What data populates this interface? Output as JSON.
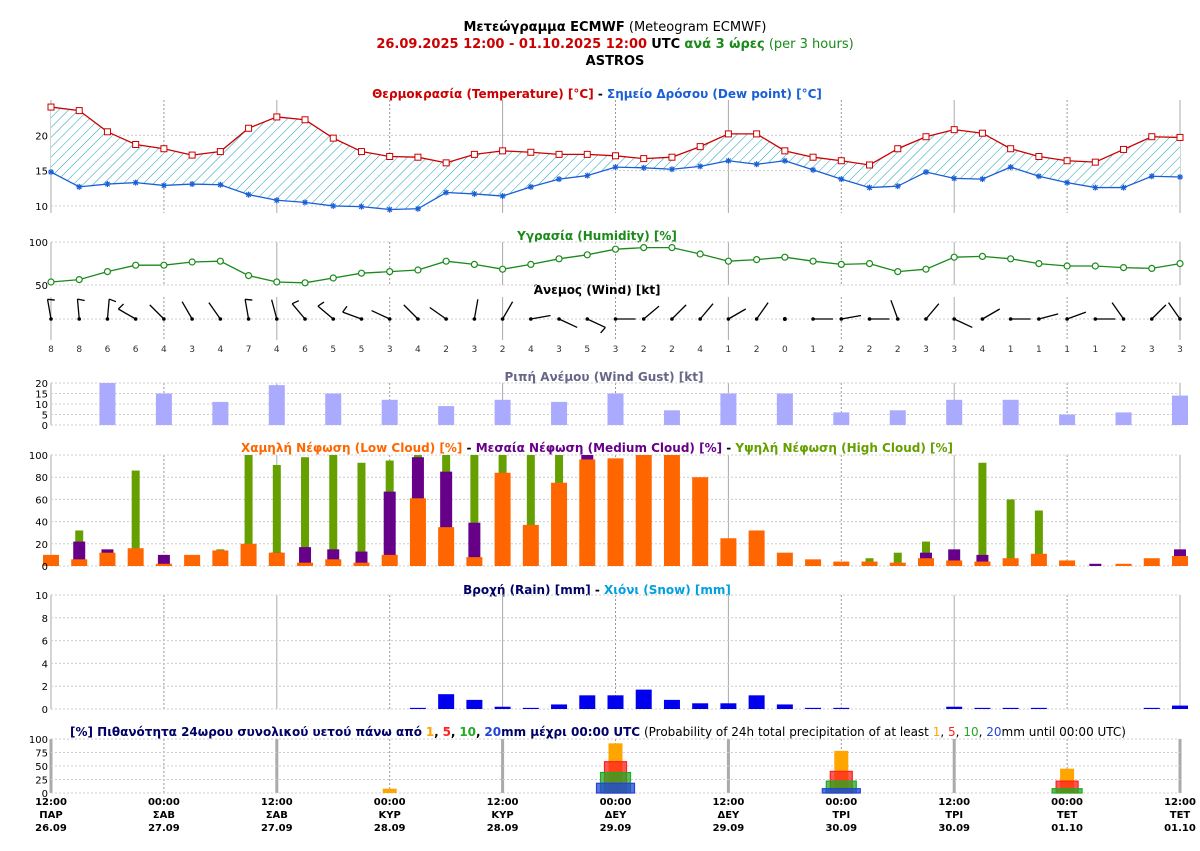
{
  "header": {
    "title_gr": "Μετεώγραμμα ECMWF",
    "title_en": "(Meteogram ECMWF)",
    "period": "26.09.2025 12:00 - 01.10.2025 12:00",
    "utc": "UTC",
    "step_gr": "ανά 3 ώρες",
    "step_en": "(per 3 hours)",
    "location": "ASTROS"
  },
  "titles": {
    "temp_a": "Θερμοκρασία (Temperature) [°C]",
    "dash": " - ",
    "temp_b": "Σημείο Δρόσου (Dew point) [°C]",
    "humidity": "Υγρασία (Humidity) [%]",
    "wind": "Άνεμος (Wind) [kt]",
    "gust": "Ριπή Ανέμου (Wind Gust) [kt]",
    "cloud_low": "Χαμηλή Νέφωση (Low Cloud) [%]",
    "cloud_med": "Μεσαία Νέφωση (Medium Cloud) [%]",
    "cloud_high": "Υψηλή Νέφωση (High Cloud) [%]",
    "rain": "Βροχή (Rain) [mm]",
    "snow": "Χιόνι (Snow) [mm]",
    "prob_a": "[%] Πιθανότητα 24ωρου συνολικού υετού πάνω από",
    "prob_b": "mm μέχρι 00:00 UTC",
    "prob_c": "(Probability of 24h total precipitation of at least",
    "prob_d": "mm until 00:00 UTC)",
    "thr1": "1",
    "thr5": "5",
    "thr10": "10",
    "thr20": "20",
    "comma": ","
  },
  "colors": {
    "temperature": "#cc0000",
    "dewpoint": "#1a5fd6",
    "humidity": "#1a8a1a",
    "gust": "#aaaaff",
    "low_cloud": "#ff6600",
    "medium_cloud": "#660088",
    "high_cloud": "#66a000",
    "rain": "#0000ee",
    "snow": "#00a0e0",
    "p1": "#ffa500",
    "p5": "#ff2020",
    "p10": "#22aa22",
    "p20": "#2244dd",
    "title_dark": "#000066"
  },
  "time_axis": {
    "hours": [
      "12:00",
      "00:00",
      "12:00",
      "00:00",
      "12:00",
      "00:00",
      "12:00",
      "00:00",
      "12:00",
      "00:00",
      "12:00"
    ],
    "days": [
      "ΠΑΡ",
      "ΣΑΒ",
      "ΣΑΒ",
      "ΚΥΡ",
      "ΚΥΡ",
      "ΔΕΥ",
      "ΔΕΥ",
      "ΤΡΙ",
      "ΤΡΙ",
      "ΤΕΤ",
      "ΤΕΤ"
    ],
    "dates": [
      "26.09",
      "27.09",
      "27.09",
      "28.09",
      "28.09",
      "29.09",
      "29.09",
      "30.09",
      "30.09",
      "01.10",
      "01.10"
    ]
  },
  "chart_data": [
    {
      "type": "line",
      "x_step_hours": 3,
      "series": [
        {
          "name": "Θερμοκρασία (Temperature) [°C]",
          "values": [
            24.0,
            23.5,
            20.5,
            18.7,
            18.1,
            17.2,
            17.7,
            21.0,
            22.6,
            22.2,
            19.6,
            17.7,
            17.0,
            16.9,
            16.1,
            17.3,
            17.8,
            17.6,
            17.3,
            17.3,
            17.1,
            16.7,
            16.9,
            18.4,
            20.2,
            20.2,
            17.8,
            16.9,
            16.4,
            15.8,
            18.1,
            19.8,
            20.8,
            20.3,
            18.1,
            17.0,
            16.4,
            16.2,
            18.0,
            19.8,
            19.7
          ]
        },
        {
          "name": "Σημείο Δρόσου (Dew point) [°C]",
          "values": [
            14.8,
            12.7,
            13.1,
            13.3,
            12.9,
            13.1,
            13.0,
            11.6,
            10.8,
            10.5,
            10.0,
            9.9,
            9.5,
            9.6,
            11.9,
            11.7,
            11.4,
            12.7,
            13.8,
            14.3,
            15.5,
            15.4,
            15.2,
            15.6,
            16.4,
            15.9,
            16.4,
            15.1,
            13.8,
            12.6,
            12.8,
            14.8,
            13.9,
            13.8,
            15.5,
            14.2,
            13.3,
            12.6,
            12.6,
            14.2,
            14.1
          ]
        }
      ],
      "yticks": [
        10,
        15,
        20
      ],
      "ylim": [
        9,
        25
      ]
    },
    {
      "type": "line",
      "series": [
        {
          "name": "Υγρασία (Humidity) [%]",
          "values": [
            50,
            53,
            63,
            71,
            71,
            75,
            76,
            58,
            50,
            49,
            55,
            61,
            63,
            65,
            76,
            72,
            66,
            72,
            79,
            84,
            91,
            93,
            93,
            85,
            76,
            78,
            81,
            76,
            72,
            73,
            63,
            66,
            81,
            82,
            79,
            73,
            70,
            70,
            68,
            67,
            73
          ]
        }
      ],
      "yticks": [
        50,
        100
      ],
      "ylim": [
        50,
        100
      ]
    },
    {
      "type": "table",
      "name": "Άνεμος (Wind) [kt]",
      "speed_kt": [
        8,
        8,
        6,
        6,
        4,
        3,
        4,
        7,
        4,
        6,
        5,
        5,
        3,
        4,
        2,
        3,
        2,
        4,
        3,
        5,
        3,
        2,
        2,
        4,
        1,
        2,
        0,
        1,
        2,
        2,
        2,
        3,
        3,
        4,
        1,
        1,
        1,
        1,
        2,
        3,
        3
      ],
      "direction_from_deg": [
        350,
        355,
        5,
        300,
        315,
        330,
        325,
        350,
        345,
        320,
        310,
        290,
        295,
        315,
        305,
        10,
        30,
        80,
        115,
        115,
        90,
        50,
        45,
        40,
        60,
        35,
        0,
        90,
        80,
        90,
        340,
        40,
        115,
        60,
        90,
        75,
        70,
        90,
        325,
        45,
        325
      ]
    },
    {
      "type": "bar",
      "name": "Ριπή Ανέμου (Wind Gust) [kt]",
      "values": [
        null,
        null,
        20,
        null,
        15,
        null,
        11,
        null,
        19,
        null,
        15,
        null,
        12,
        null,
        9,
        null,
        12,
        null,
        11,
        null,
        15,
        null,
        7,
        null,
        15,
        null,
        15,
        null,
        6,
        null,
        7,
        null,
        12,
        null,
        12,
        null,
        5,
        null,
        6,
        null,
        14
      ],
      "yticks": [
        0,
        5,
        10,
        15,
        20
      ],
      "ylim": [
        0,
        20
      ]
    },
    {
      "type": "bar",
      "x_step_hours": 3,
      "series": [
        {
          "name": "Υψηλή Νέφωση (High Cloud) [%]",
          "values": [
            5,
            32,
            12,
            86,
            10,
            5,
            15,
            100,
            91,
            98,
            100,
            93,
            95,
            100,
            100,
            100,
            100,
            100,
            100,
            40,
            30,
            20,
            10,
            5,
            5,
            0,
            0,
            0,
            0,
            7,
            12,
            22,
            5,
            93,
            60,
            50,
            0,
            0,
            0,
            0,
            10
          ]
        },
        {
          "name": "Μεσαία Νέφωση (Medium Cloud) [%]",
          "values": [
            3,
            22,
            15,
            5,
            10,
            3,
            13,
            8,
            12,
            17,
            15,
            13,
            67,
            98,
            85,
            39,
            0,
            0,
            0,
            100,
            95,
            50,
            20,
            0,
            0,
            0,
            0,
            0,
            0,
            0,
            0,
            12,
            15,
            10,
            5,
            0,
            3,
            2,
            0,
            0,
            15
          ]
        },
        {
          "name": "Χαμηλή Νέφωση (Low Cloud) [%]",
          "values": [
            10,
            6,
            12,
            16,
            2,
            10,
            14,
            20,
            12,
            3,
            6,
            3,
            10,
            61,
            35,
            8,
            84,
            37,
            75,
            96,
            97,
            100,
            100,
            80,
            25,
            32,
            12,
            6,
            4,
            4,
            3,
            7,
            5,
            4,
            7,
            11,
            5,
            0,
            2,
            7,
            9
          ]
        }
      ],
      "yticks": [
        0,
        20,
        40,
        60,
        80,
        100
      ],
      "ylim": [
        0,
        100
      ]
    },
    {
      "type": "bar",
      "series": [
        {
          "name": "Βροχή (Rain) [mm]",
          "values": [
            0,
            0,
            0,
            0,
            0,
            0,
            0,
            0,
            0,
            0,
            0,
            0,
            0,
            0.1,
            1.3,
            0.8,
            0.2,
            0.1,
            0.4,
            1.2,
            1.2,
            1.7,
            0.8,
            0.5,
            0.5,
            1.2,
            0.4,
            0.1,
            0.1,
            0,
            0,
            0,
            0.2,
            0.1,
            0.1,
            0.1,
            0,
            0,
            0,
            0.1,
            0.3
          ]
        },
        {
          "name": "Χιόνι (Snow) [mm]",
          "values": [
            0,
            0,
            0,
            0,
            0,
            0,
            0,
            0,
            0,
            0,
            0,
            0,
            0,
            0,
            0,
            0,
            0,
            0,
            0,
            0,
            0,
            0,
            0,
            0,
            0,
            0,
            0,
            0,
            0,
            0,
            0,
            0,
            0,
            0,
            0,
            0,
            0,
            0,
            0,
            0,
            0
          ]
        }
      ],
      "yticks": [
        0,
        2,
        4,
        6,
        8,
        10
      ],
      "ylim": [
        0,
        10
      ]
    },
    {
      "type": "bar",
      "categories": [
        "00:00 ΚΥΡ 28.09",
        "00:00 ΔΕΥ 29.09",
        "00:00 ΤΡΙ 30.09",
        "00:00 ΤΕΤ 01.10"
      ],
      "series": [
        {
          "name": "1",
          "values": [
            8,
            92,
            78,
            45
          ]
        },
        {
          "name": "5",
          "values": [
            0,
            58,
            40,
            22
          ]
        },
        {
          "name": "10",
          "values": [
            0,
            38,
            22,
            8
          ]
        },
        {
          "name": "20",
          "values": [
            0,
            18,
            8,
            0
          ]
        }
      ],
      "yticks": [
        0,
        25,
        50,
        75,
        100
      ],
      "ylim": [
        0,
        100
      ]
    }
  ]
}
